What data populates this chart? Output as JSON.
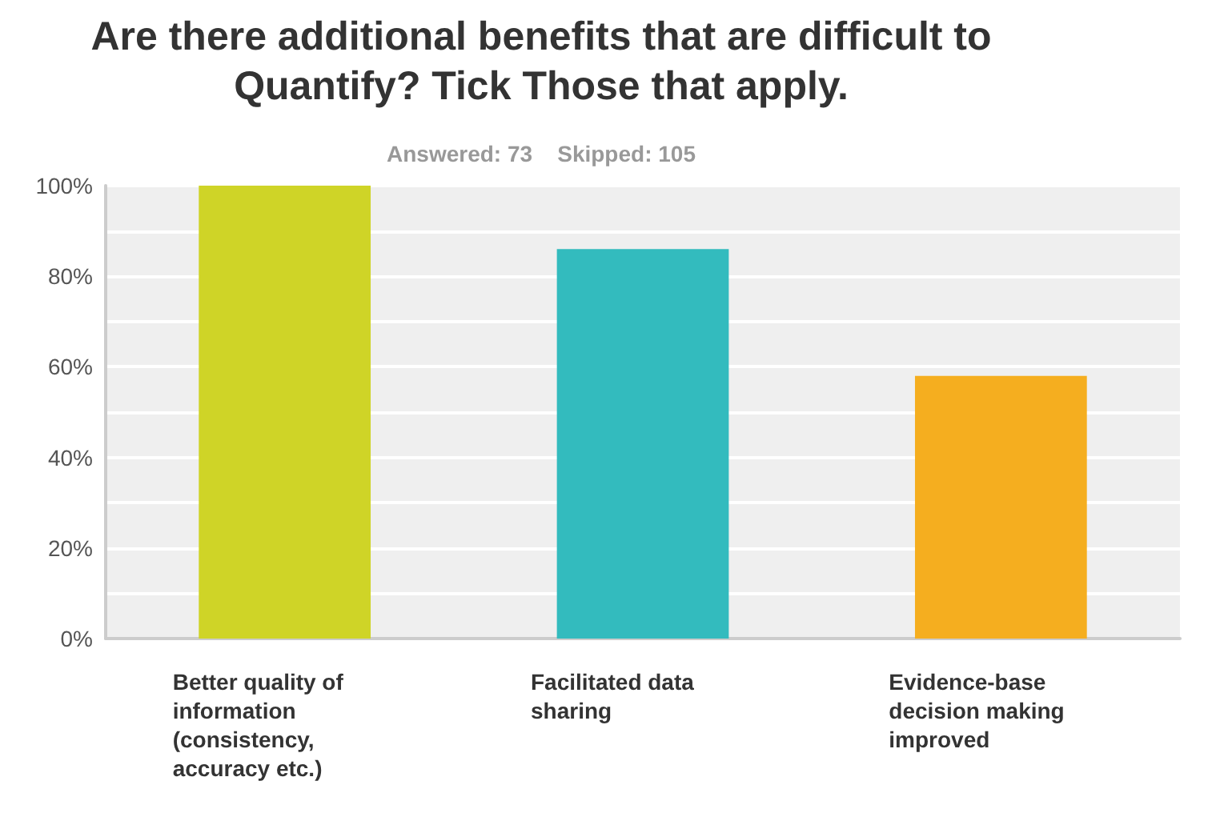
{
  "chart_data": {
    "type": "bar",
    "title": "Are there additional benefits that are difficult to Quantify? Tick Those that apply.",
    "subtitle": "Answered: 73    Skipped: 105",
    "categories": [
      "Better quality of information (consistency, accuracy etc.)",
      "Facilitated data sharing",
      "Evidence-base decision making improved"
    ],
    "values": [
      100,
      86,
      58
    ],
    "colors": [
      "#cfd427",
      "#33bbbe",
      "#f5ae1f"
    ],
    "ylim": [
      0,
      100
    ],
    "yticks": [
      {
        "value": 0,
        "label": "0%"
      },
      {
        "value": 10,
        "label": null
      },
      {
        "value": 20,
        "label": "20%"
      },
      {
        "value": 30,
        "label": null
      },
      {
        "value": 40,
        "label": "40%"
      },
      {
        "value": 50,
        "label": null
      },
      {
        "value": 60,
        "label": "60%"
      },
      {
        "value": 70,
        "label": null
      },
      {
        "value": 80,
        "label": "80%"
      },
      {
        "value": 90,
        "label": null
      },
      {
        "value": 100,
        "label": "100%"
      }
    ],
    "grid": "y"
  }
}
